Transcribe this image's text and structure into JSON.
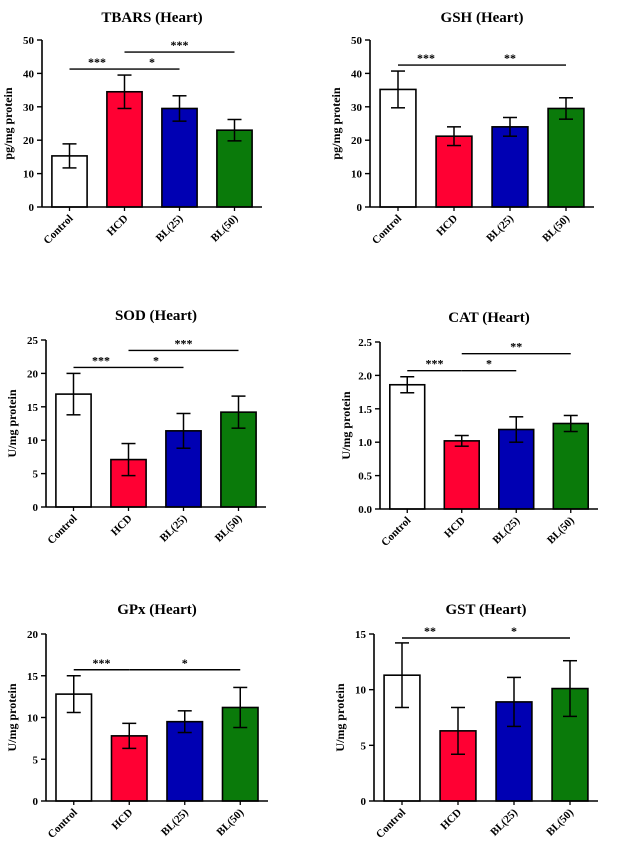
{
  "figure": {
    "colors": {
      "Control": "#ffffff",
      "HCD": "#ff0033",
      "BL(25)": "#0000b3",
      "BL(50)": "#0a7a0a",
      "axis": "#000000"
    }
  },
  "chart_data": [
    {
      "type": "bar",
      "title": "TBARS (Heart)",
      "xlabel": "",
      "ylabel": "pg/mg protein",
      "categories": [
        "Control",
        "HCD",
        "BL(25)",
        "BL(50)"
      ],
      "values": [
        15.3,
        34.5,
        29.5,
        23.0
      ],
      "errors": [
        3.6,
        5.0,
        3.8,
        3.2
      ],
      "ylim": [
        0,
        50
      ],
      "yticks": [
        0,
        10,
        20,
        30,
        40,
        50
      ],
      "ytick_labels": [
        "0",
        "10",
        "20",
        "30",
        "40",
        "50"
      ],
      "significance": [
        {
          "from": "Control",
          "to": "HCD",
          "label": "***",
          "level": 0
        },
        {
          "from": "HCD",
          "to": "BL(25)",
          "label": "*",
          "level": 0
        },
        {
          "from": "HCD",
          "to": "BL(50)",
          "label": "***",
          "level": 1
        }
      ]
    },
    {
      "type": "bar",
      "title": "GSH (Heart)",
      "xlabel": "",
      "ylabel": "pg/mg protein",
      "categories": [
        "Control",
        "HCD",
        "BL(25)",
        "BL(50)"
      ],
      "values": [
        35.2,
        21.2,
        24.0,
        29.5
      ],
      "errors": [
        5.5,
        2.8,
        2.8,
        3.2
      ],
      "ylim": [
        0,
        50
      ],
      "yticks": [
        0,
        10,
        20,
        30,
        40,
        50
      ],
      "ytick_labels": [
        "0",
        "10",
        "20",
        "30",
        "40",
        "50"
      ],
      "significance": [
        {
          "from": "Control",
          "to": "HCD",
          "label": "***",
          "level": 0
        },
        {
          "from": "HCD",
          "to": "BL(50)",
          "label": "**",
          "level": 0
        }
      ]
    },
    {
      "type": "bar",
      "title": "SOD (Heart)",
      "xlabel": "",
      "ylabel": "U/mg protein",
      "categories": [
        "Control",
        "HCD",
        "BL(25)",
        "BL(50)"
      ],
      "values": [
        16.9,
        7.1,
        11.4,
        14.2
      ],
      "errors": [
        3.1,
        2.4,
        2.6,
        2.4
      ],
      "ylim": [
        0,
        25
      ],
      "yticks": [
        0,
        5,
        10,
        15,
        20,
        25
      ],
      "ytick_labels": [
        "0",
        "5",
        "10",
        "15",
        "20",
        "25"
      ],
      "significance": [
        {
          "from": "Control",
          "to": "HCD",
          "label": "***",
          "level": 0
        },
        {
          "from": "HCD",
          "to": "BL(25)",
          "label": "*",
          "level": 0
        },
        {
          "from": "HCD",
          "to": "BL(50)",
          "label": "***",
          "level": 1
        }
      ]
    },
    {
      "type": "bar",
      "title": "CAT (Heart)",
      "xlabel": "",
      "ylabel": "U/mg protein",
      "categories": [
        "Control",
        "HCD",
        "BL(25)",
        "BL(50)"
      ],
      "values": [
        1.86,
        1.02,
        1.19,
        1.28
      ],
      "errors": [
        0.12,
        0.08,
        0.19,
        0.12
      ],
      "ylim": [
        0,
        2.5
      ],
      "yticks": [
        0,
        0.5,
        1.0,
        1.5,
        2.0,
        2.5
      ],
      "ytick_labels": [
        "0.0",
        "0.5",
        "1.0",
        "1.5",
        "2.0",
        "2.5"
      ],
      "significance": [
        {
          "from": "Control",
          "to": "HCD",
          "label": "***",
          "level": 0
        },
        {
          "from": "HCD",
          "to": "BL(25)",
          "label": "*",
          "level": 0
        },
        {
          "from": "HCD",
          "to": "BL(50)",
          "label": "**",
          "level": 1
        }
      ]
    },
    {
      "type": "bar",
      "title": "GPx (Heart)",
      "xlabel": "",
      "ylabel": "U/mg protein",
      "categories": [
        "Control",
        "HCD",
        "BL(25)",
        "BL(50)"
      ],
      "values": [
        12.8,
        7.8,
        9.5,
        11.2
      ],
      "errors": [
        2.2,
        1.5,
        1.3,
        2.4
      ],
      "ylim": [
        0,
        20
      ],
      "yticks": [
        0,
        5,
        10,
        15,
        20
      ],
      "ytick_labels": [
        "0",
        "5",
        "10",
        "15",
        "20"
      ],
      "significance": [
        {
          "from": "Control",
          "to": "HCD",
          "label": "***",
          "level": 0
        },
        {
          "from": "HCD",
          "to": "BL(50)",
          "label": "*",
          "level": 0
        }
      ]
    },
    {
      "type": "bar",
      "title": "GST (Heart)",
      "xlabel": "",
      "ylabel": "U/mg protein",
      "categories": [
        "Control",
        "HCD",
        "BL(25)",
        "BL(50)"
      ],
      "values": [
        11.3,
        6.3,
        8.9,
        10.1
      ],
      "errors": [
        2.9,
        2.1,
        2.2,
        2.5
      ],
      "ylim": [
        0,
        15
      ],
      "yticks": [
        0,
        5,
        10,
        15
      ],
      "ytick_labels": [
        "0",
        "5",
        "10",
        "15"
      ],
      "significance": [
        {
          "from": "Control",
          "to": "HCD",
          "label": "**",
          "level": 0
        },
        {
          "from": "HCD",
          "to": "BL(50)",
          "label": "*",
          "level": 0
        }
      ]
    }
  ]
}
